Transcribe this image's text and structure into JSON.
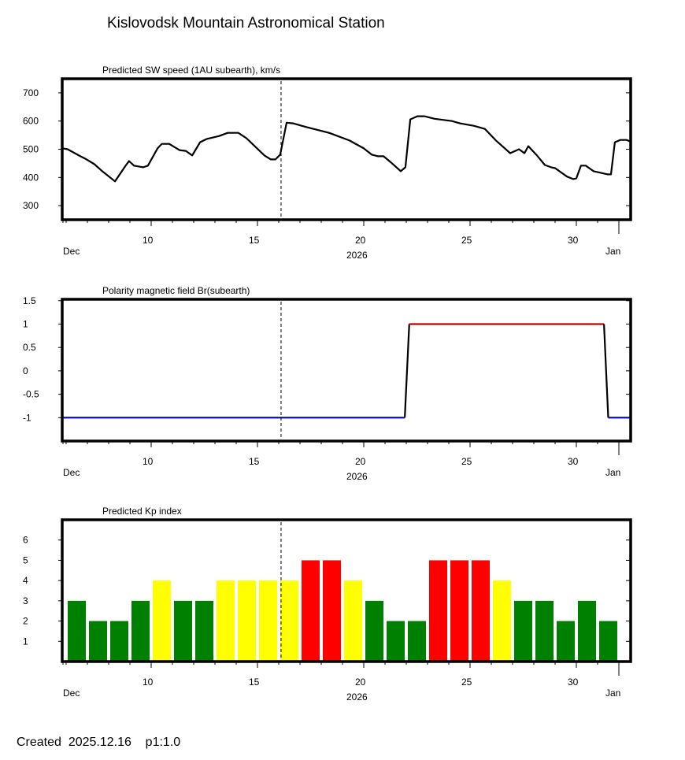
{
  "header": {
    "title": "Kislovodsk Mountain Astronomical Station"
  },
  "footer": {
    "created_label": "Created",
    "created_date": "2025.12.16",
    "page_label": "p1:1.0"
  },
  "colors": {
    "green": "#008000",
    "yellow": "#ffff00",
    "red": "#ff0000",
    "positive_line": "#c00000",
    "negative_line": "#0000c0",
    "frame": "#000000"
  },
  "x_axis": {
    "range": [
      5.8,
      32.6
    ],
    "major_ticks": [
      10,
      15,
      20,
      25,
      30
    ],
    "major_labels": [
      "10",
      "15",
      "20",
      "25",
      "30"
    ],
    "month_start_label": "Dec",
    "month_end_label": "Jan",
    "month_end_day": 32,
    "year_label": "2026",
    "current_day_marker": 16.11
  },
  "chart_data": [
    {
      "type": "line",
      "title": "Predicted SW speed (1AU subearth), km/s",
      "xlabel": "2026",
      "ylabel": "",
      "ylim": [
        250,
        750
      ],
      "yticks": [
        300,
        400,
        500,
        600,
        700
      ],
      "ytick_labels": [
        "300",
        "400",
        "500",
        "600",
        "700"
      ],
      "grid": false,
      "x": [
        5.85,
        6.07,
        6.6,
        6.96,
        7.33,
        7.7,
        8.3,
        8.8,
        8.96,
        9.19,
        9.63,
        9.85,
        10.3,
        10.5,
        10.85,
        11.33,
        11.63,
        11.93,
        12.3,
        12.6,
        13.2,
        13.6,
        14.1,
        14.48,
        15.33,
        15.63,
        15.85,
        16.07,
        16.37,
        16.67,
        17.33,
        18.37,
        19.33,
        20.0,
        20.37,
        20.67,
        20.93,
        21.33,
        21.74,
        21.96,
        22.19,
        22.52,
        22.85,
        23.33,
        24.15,
        24.52,
        25.19,
        25.7,
        26.22,
        26.89,
        27.3,
        27.56,
        27.74,
        28.15,
        28.52,
        28.81,
        29.0,
        29.56,
        29.85,
        30.0,
        30.22,
        30.44,
        30.81,
        31.48,
        31.63,
        31.81,
        32.07,
        32.37,
        32.52
      ],
      "y": [
        503,
        500,
        478,
        464,
        447,
        422,
        386,
        442,
        458,
        442,
        436,
        442,
        503,
        519,
        519,
        497,
        494,
        478,
        525,
        536,
        547,
        558,
        558,
        539,
        478,
        464,
        464,
        481,
        594,
        592,
        578,
        558,
        531,
        503,
        481,
        475,
        475,
        450,
        422,
        436,
        606,
        617,
        617,
        608,
        600,
        592,
        583,
        572,
        531,
        486,
        500,
        486,
        511,
        478,
        444,
        436,
        433,
        403,
        394,
        397,
        442,
        442,
        422,
        411,
        411,
        525,
        533,
        533,
        528
      ]
    },
    {
      "type": "line",
      "title": "Polarity magnetic field  Br(subearth)",
      "xlabel": "2026",
      "ylabel": "",
      "ylim": [
        -1.5,
        1.53
      ],
      "yticks": [
        -1,
        -0.5,
        0,
        0.5,
        1,
        1.5
      ],
      "ytick_labels": [
        "-1",
        "-0.5",
        "0",
        "0.5",
        "1",
        "1.5"
      ],
      "grid": false,
      "segments": [
        {
          "sign": "negative",
          "x": [
            5.8,
            21.93
          ],
          "y": [
            -1,
            -1
          ]
        },
        {
          "sign": "transition",
          "x": [
            21.93,
            22.14
          ],
          "y": [
            -1,
            1
          ]
        },
        {
          "sign": "positive",
          "x": [
            22.14,
            31.3
          ],
          "y": [
            1,
            1
          ]
        },
        {
          "sign": "transition",
          "x": [
            31.3,
            31.5
          ],
          "y": [
            1,
            -1
          ]
        },
        {
          "sign": "negative",
          "x": [
            31.5,
            32.6
          ],
          "y": [
            -1,
            -1
          ]
        }
      ]
    },
    {
      "type": "bar",
      "title": "Predicted Kp index",
      "xlabel": "2026",
      "ylabel": "",
      "ylim": [
        0,
        7
      ],
      "yticks": [
        1,
        2,
        3,
        4,
        5,
        6
      ],
      "ytick_labels": [
        "1",
        "2",
        "3",
        "4",
        "5",
        "6"
      ],
      "grid": false,
      "categories": [
        6,
        7,
        8,
        9,
        10,
        11,
        12,
        13,
        14,
        15,
        16,
        17,
        18,
        19,
        20,
        21,
        22,
        23,
        24,
        25,
        26,
        27,
        28,
        29,
        30,
        31
      ],
      "values": [
        3,
        2,
        2,
        3,
        4,
        3,
        3,
        4,
        4,
        4,
        4,
        5,
        5,
        4,
        3,
        2,
        2,
        5,
        5,
        5,
        4,
        3,
        3,
        2,
        3,
        2
      ],
      "color_rule": "green <= 3, yellow = 4, red >= 5"
    }
  ]
}
